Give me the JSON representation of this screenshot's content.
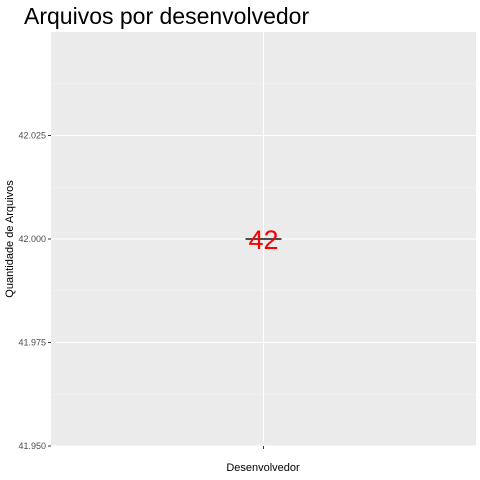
{
  "chart_data": {
    "type": "bar",
    "title": "Arquivos por desenvolvedor",
    "xlabel": "Desenvolvedor",
    "ylabel": "Quantidade de Arquivos",
    "categories": [
      ""
    ],
    "values": [
      42
    ],
    "data_labels": [
      "42"
    ],
    "ylim": [
      41.95,
      42.05
    ],
    "y_ticks": [
      41.95,
      41.975,
      42.0,
      42.025
    ],
    "y_tick_labels": [
      "41.950",
      "41.975",
      "42.000",
      "42.025"
    ],
    "grid": true,
    "legend": "none"
  },
  "colors": {
    "panel_background": "#ebebeb",
    "grid_major": "#ffffff",
    "grid_minor": "#f5f5f5",
    "data_label": "#ff0000",
    "bar_top": "#1a1a1a",
    "tick": "#333333",
    "tick_label": "#4d4d4d"
  }
}
